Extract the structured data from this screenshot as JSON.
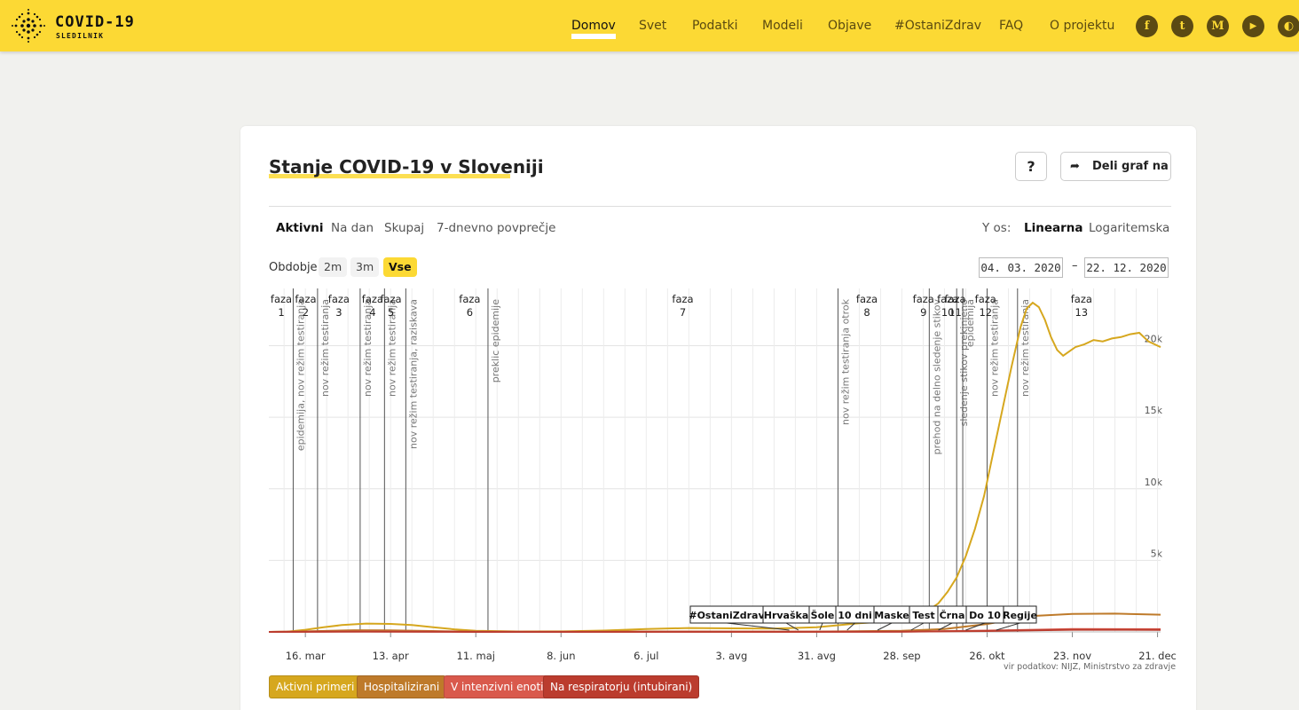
{
  "header": {
    "logo_title": "COVID-19",
    "logo_subtitle": "SLEDILNIK",
    "nav": [
      {
        "label": "Domov",
        "active": true
      },
      {
        "label": "Svet",
        "active": false
      },
      {
        "label": "Podatki",
        "active": false
      },
      {
        "label": "Modeli",
        "active": false
      },
      {
        "label": "Objave",
        "active": false
      },
      {
        "label": "#OstaniZdrav",
        "active": false
      },
      {
        "label": "FAQ",
        "active": false
      },
      {
        "label": "O projektu",
        "active": false
      }
    ],
    "social": [
      {
        "icon": "facebook-icon",
        "glyph": "f"
      },
      {
        "icon": "twitter-icon",
        "glyph": "t"
      },
      {
        "icon": "medium-icon",
        "glyph": "M"
      },
      {
        "icon": "youtube-icon",
        "glyph": "▶"
      },
      {
        "icon": "github-icon",
        "glyph": "◐"
      }
    ]
  },
  "card": {
    "title": "Stanje COVID-19 v Sloveniji",
    "help_label": "?",
    "share_label": "Deli graf na",
    "share_icon": "share-arrow-icon",
    "tabs": [
      {
        "label": "Aktivni",
        "active": true
      },
      {
        "label": "Na dan",
        "active": false
      },
      {
        "label": "Skupaj",
        "active": false
      },
      {
        "label": "7-dnevno povprečje",
        "active": false
      }
    ],
    "y_axis_label": "Y os:",
    "y_axis_options": [
      {
        "label": "Linearna",
        "active": true
      },
      {
        "label": "Logaritemska",
        "active": false
      }
    ],
    "period_label": "Obdobje",
    "period_options": [
      {
        "label": "2m",
        "active": false
      },
      {
        "label": "3m",
        "active": false
      },
      {
        "label": "Vse",
        "active": true
      }
    ],
    "date_from": "04. 03. 2020",
    "date_to": "22. 12. 2020",
    "date_separator": "–",
    "source_text": "vir podatkov: NIJZ, Ministrstvo za zdravje",
    "legend": [
      {
        "label": "Aktivni primeri",
        "color": "#d6a71e"
      },
      {
        "label": "Hospitalizirani",
        "color": "#be7a2a"
      },
      {
        "label": "V intenzivni enoti",
        "color": "#d9594c"
      },
      {
        "label": "Na respiratorju (intubirani)",
        "color": "#bb3c2e"
      }
    ]
  },
  "chart_data": {
    "type": "line",
    "x_start": "2020-03-04",
    "x_end": "2020-12-22",
    "x_ticks": [
      {
        "date": "2020-03-16",
        "label": "16. mar"
      },
      {
        "date": "2020-04-13",
        "label": "13. apr"
      },
      {
        "date": "2020-05-11",
        "label": "11. maj"
      },
      {
        "date": "2020-06-08",
        "label": "8. jun"
      },
      {
        "date": "2020-07-06",
        "label": "6. jul"
      },
      {
        "date": "2020-08-03",
        "label": "3. avg"
      },
      {
        "date": "2020-08-31",
        "label": "31. avg"
      },
      {
        "date": "2020-09-28",
        "label": "28. sep"
      },
      {
        "date": "2020-10-26",
        "label": "26. okt"
      },
      {
        "date": "2020-11-23",
        "label": "23. nov"
      },
      {
        "date": "2020-12-21",
        "label": "21. dec"
      }
    ],
    "ylim": [
      0,
      24000
    ],
    "y_ticks": [
      {
        "value": 5000,
        "label": "5k"
      },
      {
        "value": 10000,
        "label": "10k"
      },
      {
        "value": 15000,
        "label": "15k"
      },
      {
        "value": 20000,
        "label": "20k"
      }
    ],
    "grid": true,
    "series": [
      {
        "name": "Aktivni primeri",
        "color": "#d6a71e",
        "points": [
          [
            "2020-03-04",
            0
          ],
          [
            "2020-03-10",
            20
          ],
          [
            "2020-03-16",
            150
          ],
          [
            "2020-03-22",
            330
          ],
          [
            "2020-03-28",
            480
          ],
          [
            "2020-04-05",
            580
          ],
          [
            "2020-04-13",
            560
          ],
          [
            "2020-04-20",
            480
          ],
          [
            "2020-04-27",
            320
          ],
          [
            "2020-05-04",
            180
          ],
          [
            "2020-05-11",
            80
          ],
          [
            "2020-05-25",
            30
          ],
          [
            "2020-06-08",
            40
          ],
          [
            "2020-06-22",
            90
          ],
          [
            "2020-07-06",
            200
          ],
          [
            "2020-07-20",
            270
          ],
          [
            "2020-08-03",
            250
          ],
          [
            "2020-08-17",
            230
          ],
          [
            "2020-08-31",
            330
          ],
          [
            "2020-09-14",
            600
          ],
          [
            "2020-09-28",
            800
          ],
          [
            "2020-10-02",
            1100
          ],
          [
            "2020-10-06",
            1400
          ],
          [
            "2020-10-10",
            2000
          ],
          [
            "2020-10-13",
            2800
          ],
          [
            "2020-10-16",
            3800
          ],
          [
            "2020-10-19",
            5300
          ],
          [
            "2020-10-22",
            7200
          ],
          [
            "2020-10-25",
            9500
          ],
          [
            "2020-10-28",
            12500
          ],
          [
            "2020-10-31",
            15500
          ],
          [
            "2020-11-03",
            18500
          ],
          [
            "2020-11-06",
            21300
          ],
          [
            "2020-11-08",
            22600
          ],
          [
            "2020-11-10",
            23000
          ],
          [
            "2020-11-12",
            22700
          ],
          [
            "2020-11-14",
            21800
          ],
          [
            "2020-11-16",
            20600
          ],
          [
            "2020-11-18",
            19700
          ],
          [
            "2020-11-20",
            19300
          ],
          [
            "2020-11-22",
            19600
          ],
          [
            "2020-11-24",
            19900
          ],
          [
            "2020-11-27",
            20100
          ],
          [
            "2020-11-30",
            20400
          ],
          [
            "2020-12-03",
            20300
          ],
          [
            "2020-12-06",
            20500
          ],
          [
            "2020-12-09",
            20600
          ],
          [
            "2020-12-12",
            20800
          ],
          [
            "2020-12-15",
            20900
          ],
          [
            "2020-12-18",
            20300
          ],
          [
            "2020-12-22",
            19900
          ]
        ]
      },
      {
        "name": "Hospitalizirani",
        "color": "#be7a2a",
        "points": [
          [
            "2020-03-04",
            0
          ],
          [
            "2020-03-16",
            40
          ],
          [
            "2020-04-01",
            120
          ],
          [
            "2020-04-13",
            110
          ],
          [
            "2020-05-04",
            40
          ],
          [
            "2020-06-08",
            15
          ],
          [
            "2020-07-06",
            30
          ],
          [
            "2020-08-31",
            25
          ],
          [
            "2020-09-28",
            80
          ],
          [
            "2020-10-12",
            200
          ],
          [
            "2020-10-26",
            550
          ],
          [
            "2020-11-09",
            1100
          ],
          [
            "2020-11-23",
            1250
          ],
          [
            "2020-12-07",
            1280
          ],
          [
            "2020-12-22",
            1200
          ]
        ]
      },
      {
        "name": "V intenzivni enoti",
        "color": "#d9594c",
        "points": [
          [
            "2020-03-04",
            0
          ],
          [
            "2020-04-05",
            30
          ],
          [
            "2020-05-11",
            5
          ],
          [
            "2020-09-28",
            15
          ],
          [
            "2020-10-26",
            90
          ],
          [
            "2020-11-23",
            200
          ],
          [
            "2020-12-22",
            190
          ]
        ]
      },
      {
        "name": "Na respiratorju (intubirani)",
        "color": "#bb3c2e",
        "points": [
          [
            "2020-03-04",
            0
          ],
          [
            "2020-04-05",
            20
          ],
          [
            "2020-05-11",
            3
          ],
          [
            "2020-09-28",
            10
          ],
          [
            "2020-10-26",
            60
          ],
          [
            "2020-11-23",
            150
          ],
          [
            "2020-12-22",
            140
          ]
        ]
      }
    ],
    "phases": [
      {
        "date": "2020-03-04",
        "label": "faza",
        "num": "1"
      },
      {
        "date": "2020-03-12",
        "label": "faza",
        "num": "2"
      },
      {
        "date": "2020-03-20",
        "label": "faza",
        "num": "3"
      },
      {
        "date": "2020-04-03",
        "label": "faza",
        "num": "4"
      },
      {
        "date": "2020-04-09",
        "label": "faza",
        "num": "5"
      },
      {
        "date": "2020-04-15",
        "label": "faza",
        "num": "6"
      },
      {
        "date": "2020-06-02",
        "label": "faza",
        "num": "7"
      },
      {
        "date": "2020-09-02",
        "label": "faza",
        "num": "8"
      },
      {
        "date": "2020-10-01",
        "label": "faza",
        "num": "9"
      },
      {
        "date": "2020-10-09",
        "label": "faza",
        "num": "10"
      },
      {
        "date": "2020-10-11",
        "label": "faza",
        "num": "11"
      },
      {
        "date": "2020-10-20",
        "label": "faza",
        "num": "12"
      },
      {
        "date": "2020-10-31",
        "label": "faza",
        "num": "13"
      }
    ],
    "event_lines": [
      {
        "date": "2020-03-12",
        "label": "epidemija, nov režim testiranja"
      },
      {
        "date": "2020-03-20",
        "label": "nov režim testiranja"
      },
      {
        "date": "2020-04-03",
        "label": "nov režim testiranja"
      },
      {
        "date": "2020-04-11",
        "label": "nov režim testiranja"
      },
      {
        "date": "2020-04-18",
        "label": "nov režim testiranja, raziskava"
      },
      {
        "date": "2020-05-15",
        "label": "preklic epidemije"
      },
      {
        "date": "2020-09-07",
        "label": "nov režim testiranja otrok"
      },
      {
        "date": "2020-10-07",
        "label": "prehod na delno sledenje stikov"
      },
      {
        "date": "2020-10-16",
        "label": "sledenje stikov prekinjeno"
      },
      {
        "date": "2020-10-18",
        "label": "epidemija"
      },
      {
        "date": "2020-10-26",
        "label": "nov režim testiranja"
      },
      {
        "date": "2020-11-05",
        "label": "nov režim testiranja"
      }
    ],
    "flag_labels": [
      {
        "label": "#OstaniZdrav",
        "date": "2020-08-22"
      },
      {
        "label": "Hrvaška",
        "date": "2020-08-25"
      },
      {
        "label": "Šole",
        "date": "2020-09-01"
      },
      {
        "label": "10 dni",
        "date": "2020-09-10"
      },
      {
        "label": "Maske",
        "date": "2020-09-20"
      },
      {
        "label": "Test",
        "date": "2020-10-01"
      },
      {
        "label": "Črna",
        "date": "2020-10-10"
      },
      {
        "label": "Do 10",
        "date": "2020-10-19"
      },
      {
        "label": "Regije",
        "date": "2020-10-29"
      }
    ]
  }
}
